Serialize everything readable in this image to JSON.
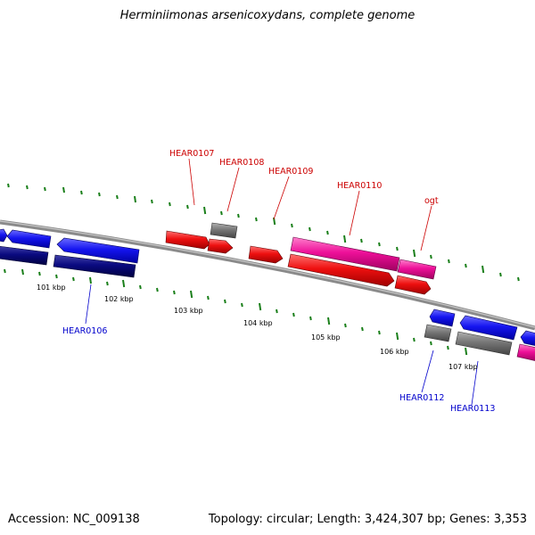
{
  "title": "Herminiimonas arsenicoxydans, complete genome",
  "footer": {
    "accession": "Accession: NC_009138",
    "summary": "Topology: circular; Length: 3,424,307 bp; Genes: 3,353"
  },
  "colors": {
    "backbone": "#888888",
    "tick": "#1a7f1a",
    "gene_blue": "#1010ee",
    "gene_navy": "#0a0a80",
    "gene_red": "#ee1010",
    "gene_magenta": "#ee1099",
    "gene_grey": "#777777",
    "label_red": "#cc0000",
    "label_blue": "#0000cc"
  },
  "scale_labels": [
    "101 kbp",
    "102 kbp",
    "103 kbp",
    "104 kbp",
    "105 kbp",
    "106 kbp",
    "107 kbp"
  ],
  "gene_labels_top": [
    "HEAR0107",
    "HEAR0108",
    "HEAR0109",
    "HEAR0110",
    "ogt"
  ],
  "gene_labels_bottom": [
    "HEAR0106",
    "HEAR0112",
    "HEAR0113"
  ]
}
